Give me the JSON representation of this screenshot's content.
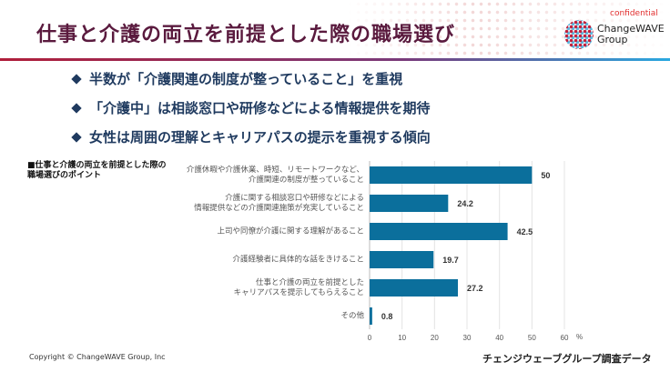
{
  "header": {
    "title": "仕事と介護の両立を前提とした際の職場選び",
    "confidential": "confidential",
    "logo_line1": "ChangeWAVE",
    "logo_line2": "Group"
  },
  "bullets": [
    "半数が「介護関連の制度が整っていること」を重視",
    "「介護中」は相談窓口や研修などによる情報提供を期待",
    "女性は周囲の理解とキャリアパスの提示を重視する傾向"
  ],
  "chart_data": {
    "type": "bar",
    "orientation": "horizontal",
    "title": "■仕事と介護の両立を前提とした際の\n職場選びのポイント",
    "categories": [
      "介護休暇や介護休業、時短、リモートワークなど、\n介護関連の制度が整っていること",
      "介護に関する相談窓口や研修などによる\n情報提供などの介護関連施策が充実していること",
      "上司や同僚が介護に関する理解があること",
      "介護経験者に具体的な話をきけること",
      "仕事と介護の両立を前提とした\nキャリアパスを提示してもらえること",
      "その他"
    ],
    "values": [
      50,
      24.2,
      42.5,
      19.7,
      27.2,
      0.8
    ],
    "value_labels": [
      "50",
      "24.2",
      "42.5",
      "19.7",
      "27.2",
      "0.8"
    ],
    "xlim": [
      0,
      60
    ],
    "ticks": [
      "0",
      "10",
      "20",
      "30",
      "40",
      "50",
      "60"
    ],
    "unit": "%",
    "grid": true,
    "bar_color": "#0b6f9c"
  },
  "footer": {
    "copyright": "Copyright © ChangeWAVE Group, Inc",
    "source": "チェンジウェーブグループ調査データ"
  }
}
